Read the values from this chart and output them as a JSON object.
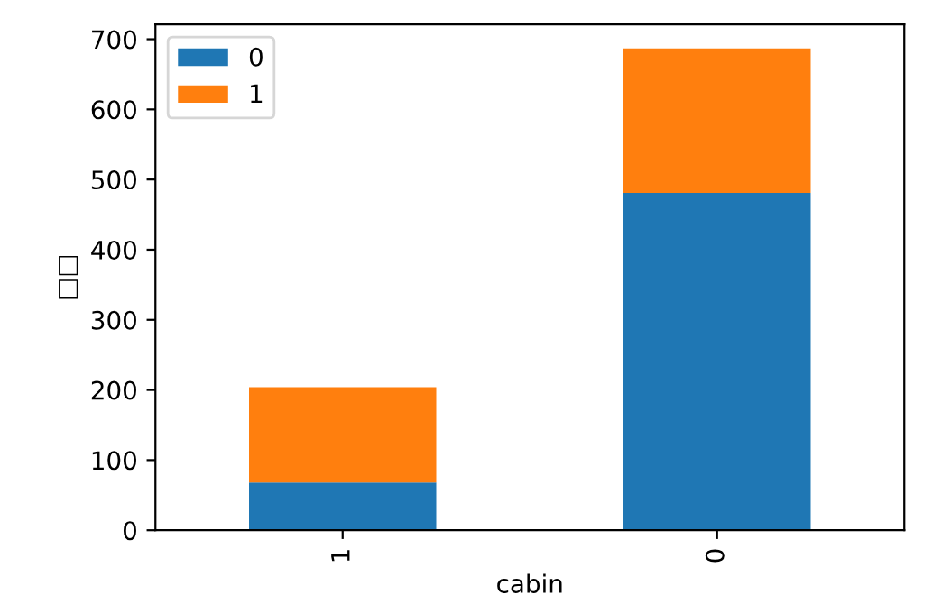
{
  "chart_data": {
    "type": "bar",
    "stacked": true,
    "xlabel": "cabin",
    "ylabel": "□□",
    "categories": [
      "1",
      "0"
    ],
    "series": [
      {
        "name": "0",
        "color": "#1f77b4",
        "values": [
          68,
          481
        ]
      },
      {
        "name": "1",
        "color": "#ff7f0e",
        "values": [
          136,
          206
        ]
      }
    ],
    "ylim": [
      0,
      721
    ],
    "yticks": [
      0,
      100,
      200,
      300,
      400,
      500,
      600,
      700
    ],
    "grid": false,
    "legend": "top left"
  }
}
